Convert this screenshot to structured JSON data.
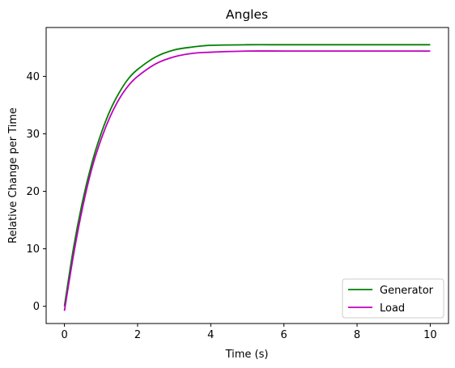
{
  "chart_data": {
    "type": "line",
    "title": "Angles",
    "xlabel": "Time (s)",
    "ylabel": "Relative Change per Time",
    "xlim": [
      -0.5,
      10.5
    ],
    "ylim": [
      -3.0,
      48.5
    ],
    "xticks": [
      0,
      2,
      4,
      6,
      8,
      10
    ],
    "yticks": [
      0,
      10,
      20,
      30,
      40
    ],
    "grid": false,
    "legend_position": "lower-right",
    "series": [
      {
        "name": "Generator",
        "color": "#008000",
        "x": [
          0,
          0.25,
          0.5,
          0.75,
          1,
          1.25,
          1.5,
          1.75,
          2,
          2.5,
          3,
          3.5,
          4,
          5,
          6,
          7,
          8,
          9,
          10
        ],
        "y": [
          0,
          10.2,
          18.4,
          24.9,
          30.0,
          34.1,
          37.2,
          39.6,
          41.2,
          43.4,
          44.6,
          45.1,
          45.4,
          45.5,
          45.5,
          45.5,
          45.5,
          45.5,
          45.5
        ]
      },
      {
        "name": "Load",
        "color": "#bf00bf",
        "x": [
          0,
          0.25,
          0.5,
          0.75,
          1,
          1.25,
          1.5,
          1.75,
          2,
          2.5,
          3,
          3.5,
          4,
          5,
          6,
          7,
          8,
          9,
          10
        ],
        "y": [
          -0.8,
          9.0,
          17.3,
          24.0,
          29.0,
          33.0,
          36.1,
          38.4,
          40.0,
          42.2,
          43.4,
          44.0,
          44.2,
          44.4,
          44.4,
          44.4,
          44.4,
          44.4,
          44.4
        ]
      }
    ]
  }
}
